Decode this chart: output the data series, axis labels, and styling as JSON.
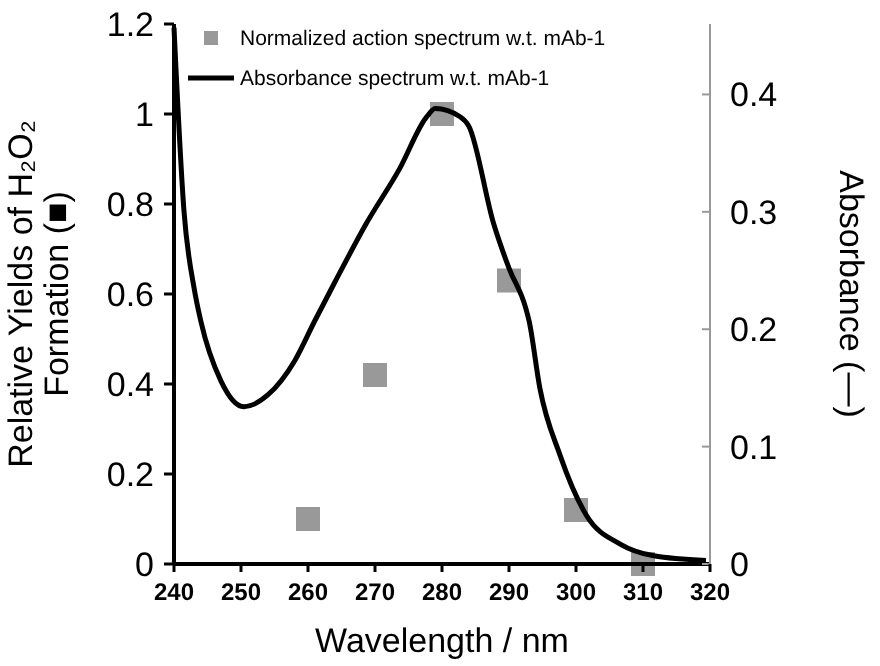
{
  "chart_data": {
    "type": "scatter",
    "xlabel": "Wavelength / nm",
    "ylabel": "Relative Yields of H₂O₂ Formation (■)",
    "y2label": "Absorbance (—)",
    "xlim": [
      240,
      320
    ],
    "xticks": [
      240,
      250,
      260,
      270,
      280,
      290,
      300,
      310,
      320
    ],
    "ylim": [
      0,
      1.2
    ],
    "yticks": [
      0,
      0.2,
      0.4,
      0.6,
      0.8,
      1,
      1.2
    ],
    "y2lim": [
      0,
      0.46
    ],
    "y2ticks": [
      0,
      0.1,
      0.2,
      0.3,
      0.4
    ],
    "legend": "top",
    "grid": false,
    "series": [
      {
        "name": "Normalized action spectrum w.t. mAb-1",
        "marker": "square",
        "color": "#999999",
        "x": [
          260,
          270,
          280,
          290,
          300,
          310
        ],
        "values": [
          0.1,
          0.42,
          1.0,
          0.63,
          0.12,
          0.0
        ]
      },
      {
        "name": "Absorbance spectrum w.t. mAb-1",
        "type": "line",
        "axis": "y2",
        "color": "#000000",
        "x": [
          240,
          241.5,
          243,
          244,
          247,
          250.4,
          254,
          258,
          261,
          264,
          268.7,
          273.7,
          277.6,
          279,
          282.7,
          284,
          287.7,
          290,
          292.5,
          293,
          294.6,
          297.6,
          301.5,
          306.6,
          311.6,
          319.4
        ],
        "values": [
          0.457,
          0.3,
          0.235,
          0.207,
          0.156,
          0.134,
          0.144,
          0.173,
          0.207,
          0.24,
          0.29,
          0.337,
          0.38,
          0.388,
          0.381,
          0.373,
          0.29,
          0.252,
          0.218,
          0.207,
          0.15,
          0.093,
          0.042,
          0.017,
          0.007,
          0.003
        ]
      }
    ]
  }
}
